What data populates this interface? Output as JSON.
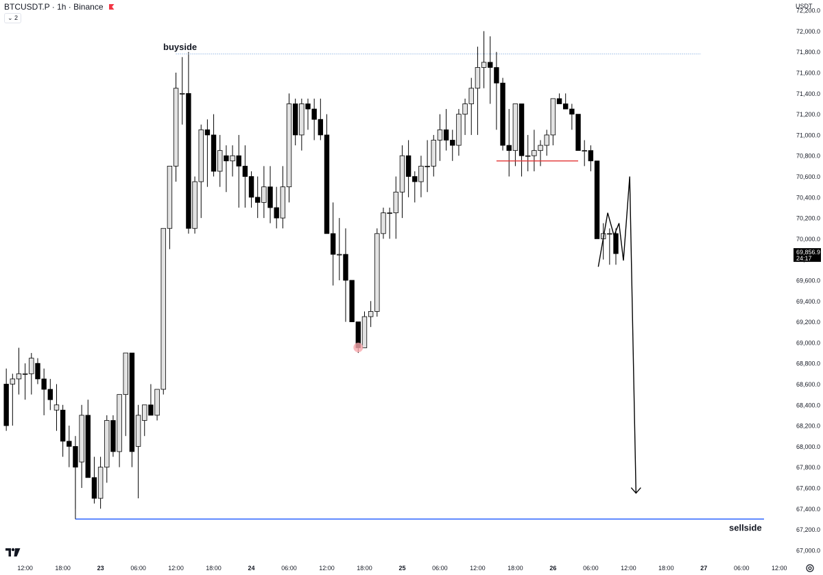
{
  "header": {
    "symbol_title": "BTCUSDT.P · 1h · Binance",
    "indicator_badge": "⌄ 2",
    "currency": "USDT"
  },
  "colors": {
    "up_candle": "#e3e3e3",
    "down_candle": "#000000",
    "wick": "#000000",
    "buyside_line": "#5b8fd6",
    "sellside_line": "#2962ff",
    "red_level": "#e03131",
    "axis_text": "#131722",
    "pin_marker": "#f7a8ad"
  },
  "chart_data": {
    "type": "candlestick",
    "timeframe": "1h",
    "y_range": [
      66900,
      72300
    ],
    "x_range_hours": [
      -1,
      124.5
    ],
    "y_ticks": [
      72200,
      72000,
      71800,
      71600,
      71400,
      71200,
      71000,
      70800,
      70600,
      70400,
      70200,
      70000,
      69800,
      69600,
      69400,
      69200,
      69000,
      68800,
      68600,
      68400,
      68200,
      68000,
      67800,
      67600,
      67400,
      67200,
      67000
    ],
    "y_tick_labels": [
      "72,200.0",
      "72,000.0",
      "71,800.0",
      "71,600.0",
      "71,400.0",
      "71,200.0",
      "71,000.0",
      "70,800.0",
      "70,600.0",
      "70,400.0",
      "70,200.0",
      "70,000.0",
      "69,800.0",
      "69,600.0",
      "69,400.0",
      "69,200.0",
      "69,000.0",
      "68,800.0",
      "68,600.0",
      "68,400.0",
      "68,200.0",
      "68,000.0",
      "67,800.0",
      "67,600.0",
      "67,400.0",
      "67,200.0",
      "67,000.0"
    ],
    "x_ticks": [
      {
        "label": "12:00",
        "h": 3
      },
      {
        "label": "18:00",
        "h": 9
      },
      {
        "label": "23",
        "h": 15,
        "bold": true
      },
      {
        "label": "06:00",
        "h": 21
      },
      {
        "label": "12:00",
        "h": 27
      },
      {
        "label": "18:00",
        "h": 33
      },
      {
        "label": "24",
        "h": 39,
        "bold": true
      },
      {
        "label": "06:00",
        "h": 45
      },
      {
        "label": "12:00",
        "h": 51
      },
      {
        "label": "18:00",
        "h": 57
      },
      {
        "label": "25",
        "h": 63,
        "bold": true
      },
      {
        "label": "06:00",
        "h": 69
      },
      {
        "label": "12:00",
        "h": 75
      },
      {
        "label": "18:00",
        "h": 81
      },
      {
        "label": "26",
        "h": 87,
        "bold": true
      },
      {
        "label": "06:00",
        "h": 93
      },
      {
        "label": "12:00",
        "h": 99
      },
      {
        "label": "18:00",
        "h": 105
      },
      {
        "label": "27",
        "h": 111,
        "bold": true
      },
      {
        "label": "06:00",
        "h": 117
      },
      {
        "label": "12:00",
        "h": 123
      }
    ],
    "candles_ohlc": [
      [
        68600,
        68750,
        68150,
        68200
      ],
      [
        68600,
        68700,
        68200,
        68650
      ],
      [
        68650,
        68950,
        68500,
        68700
      ],
      [
        68700,
        68800,
        68450,
        68700
      ],
      [
        68700,
        68900,
        68500,
        68850
      ],
      [
        68800,
        68850,
        68600,
        68650
      ],
      [
        68650,
        68750,
        68300,
        68550
      ],
      [
        68550,
        68650,
        68350,
        68450
      ],
      [
        68350,
        68600,
        68150,
        68400
      ],
      [
        68350,
        68400,
        67900,
        68050
      ],
      [
        68050,
        68200,
        67800,
        68000
      ],
      [
        68000,
        68100,
        67400,
        67800
      ],
      [
        67850,
        68400,
        67600,
        68300
      ],
      [
        68300,
        68450,
        67700,
        67700
      ],
      [
        67700,
        67900,
        67450,
        67500
      ],
      [
        67500,
        67900,
        67400,
        67800
      ],
      [
        67800,
        68300,
        67650,
        68250
      ],
      [
        68250,
        68300,
        67900,
        67950
      ],
      [
        67950,
        68450,
        67800,
        68500
      ],
      [
        68500,
        68900,
        68100,
        68900
      ],
      [
        68900,
        68900,
        67800,
        67950
      ],
      [
        68000,
        68400,
        67500,
        68300
      ],
      [
        68250,
        68400,
        68100,
        68400
      ],
      [
        68400,
        68600,
        68300,
        68300
      ],
      [
        68300,
        68550,
        68250,
        68550
      ],
      [
        68550,
        70100,
        68500,
        70100
      ],
      [
        70100,
        70700,
        69900,
        70700
      ],
      [
        70700,
        71600,
        70550,
        71450
      ],
      [
        71400,
        71750,
        71100,
        71400
      ],
      [
        71400,
        71800,
        70050,
        70100
      ],
      [
        70100,
        70600,
        70050,
        70550
      ],
      [
        70550,
        71100,
        70200,
        71050
      ],
      [
        71050,
        71150,
        70500,
        71000
      ],
      [
        71000,
        71200,
        70600,
        70650
      ],
      [
        70650,
        71000,
        70500,
        70850
      ],
      [
        70800,
        70900,
        70450,
        70750
      ],
      [
        70750,
        70900,
        70600,
        70800
      ],
      [
        70800,
        71000,
        70300,
        70700
      ],
      [
        70700,
        70900,
        70300,
        70600
      ],
      [
        70600,
        70650,
        70300,
        70400
      ],
      [
        70400,
        70600,
        70200,
        70350
      ],
      [
        70350,
        70700,
        70200,
        70500
      ],
      [
        70500,
        70700,
        70150,
        70300
      ],
      [
        70300,
        70500,
        70100,
        70200
      ],
      [
        70200,
        70700,
        70100,
        70500
      ],
      [
        70500,
        71400,
        70350,
        71300
      ],
      [
        71300,
        71350,
        70900,
        71000
      ],
      [
        71000,
        71350,
        70850,
        71300
      ],
      [
        71300,
        71350,
        71050,
        71250
      ],
      [
        71250,
        71350,
        70950,
        71150
      ],
      [
        71150,
        71350,
        70950,
        71000
      ],
      [
        71000,
        71200,
        70450,
        70050
      ],
      [
        70050,
        70350,
        69550,
        69850
      ],
      [
        69850,
        70200,
        69600,
        69850
      ],
      [
        69850,
        70100,
        69200,
        69600
      ],
      [
        69600,
        69600,
        69200,
        69200
      ],
      [
        69200,
        69200,
        68900,
        68950
      ],
      [
        68950,
        69300,
        68950,
        69250
      ],
      [
        69250,
        69400,
        69150,
        69300
      ],
      [
        69300,
        70100,
        69250,
        70050
      ],
      [
        70050,
        70300,
        70000,
        70250
      ],
      [
        70250,
        70300,
        70000,
        70250
      ],
      [
        70250,
        70600,
        70000,
        70450
      ],
      [
        70450,
        70900,
        70200,
        70800
      ],
      [
        70800,
        70950,
        70400,
        70600
      ],
      [
        70600,
        70650,
        70350,
        70550
      ],
      [
        70550,
        70800,
        70400,
        70700
      ],
      [
        70700,
        70950,
        70450,
        70700
      ],
      [
        70700,
        71000,
        70600,
        70950
      ],
      [
        70950,
        71200,
        70750,
        71050
      ],
      [
        71050,
        71250,
        70850,
        70950
      ],
      [
        70950,
        71050,
        70750,
        70900
      ],
      [
        70900,
        71250,
        70800,
        71200
      ],
      [
        71200,
        71350,
        71000,
        71300
      ],
      [
        71300,
        71550,
        71000,
        71450
      ],
      [
        71450,
        71850,
        71000,
        71650
      ],
      [
        71650,
        72000,
        71450,
        71700
      ],
      [
        71700,
        71950,
        71300,
        71650
      ],
      [
        71650,
        71800,
        71050,
        71500
      ],
      [
        71500,
        71550,
        70850,
        70900
      ],
      [
        70900,
        71250,
        70600,
        70850
      ],
      [
        70850,
        71300,
        70700,
        71300
      ],
      [
        71300,
        71300,
        70600,
        70800
      ],
      [
        70800,
        71000,
        70650,
        70800
      ],
      [
        70800,
        71050,
        70650,
        70850
      ],
      [
        70850,
        70950,
        70700,
        70900
      ],
      [
        70900,
        71050,
        70800,
        71000
      ],
      [
        71000,
        71350,
        70900,
        71350
      ],
      [
        71350,
        71400,
        71300,
        71300
      ],
      [
        71300,
        71400,
        71250,
        71250
      ],
      [
        71250,
        71300,
        71050,
        71200
      ],
      [
        71200,
        71200,
        70850,
        70850
      ],
      [
        70850,
        70950,
        70700,
        70850
      ],
      [
        70850,
        70900,
        70650,
        70750
      ],
      [
        70750,
        70750,
        70000,
        70000
      ],
      [
        70000,
        70150,
        69800,
        70050
      ],
      [
        70050,
        70100,
        69750,
        70050
      ],
      [
        70050,
        70100,
        69750,
        69857
      ]
    ],
    "annotations": {
      "buyside_label": "buyside",
      "buyside_level": 71780,
      "sellside_label": "sellside",
      "sellside_level": 67300,
      "red_level": 70750,
      "pin_low": 68900
    },
    "last_price": {
      "value": 69856.9,
      "label": "69,856.9",
      "countdown": "24:17"
    },
    "projection_path": [
      [
        94.2,
        69730
      ],
      [
        95.7,
        70250
      ],
      [
        96.7,
        70030
      ],
      [
        97.5,
        70150
      ],
      [
        98.2,
        69790
      ],
      [
        99.2,
        70600
      ],
      [
        100.2,
        67550
      ]
    ]
  }
}
